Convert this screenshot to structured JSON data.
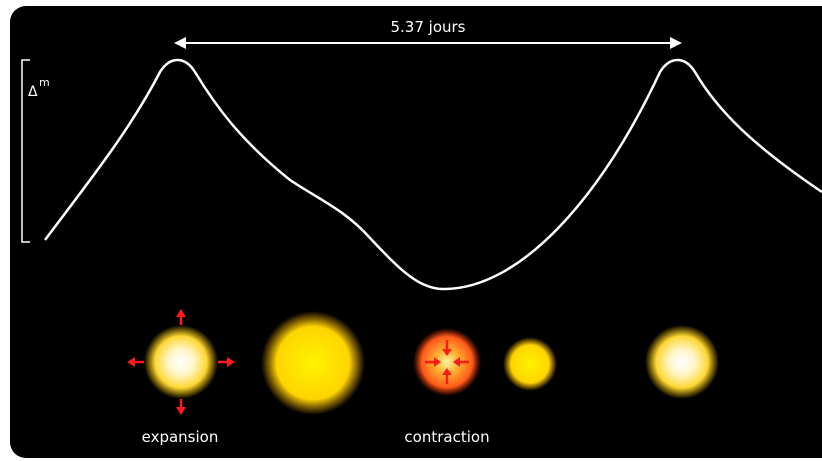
{
  "period_label": "5.37 jours",
  "amplitude_label": {
    "symbol": "Δ",
    "superscript": "m"
  },
  "phases": {
    "expansion": "expansion",
    "contraction": "contraction"
  }
}
